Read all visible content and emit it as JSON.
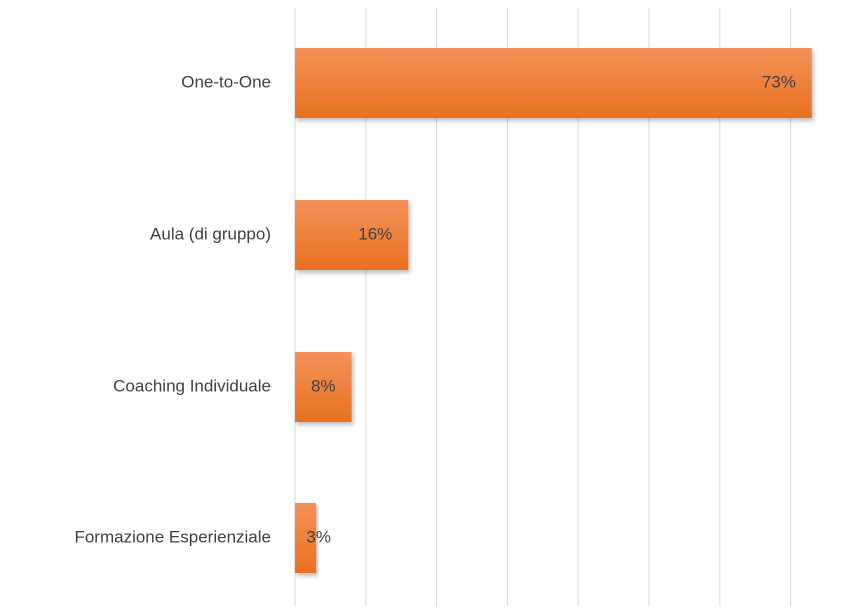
{
  "chart_data": {
    "type": "bar",
    "orientation": "horizontal",
    "title": "",
    "xlabel": "",
    "ylabel": "",
    "categories": [
      "One-to-One",
      "Aula (di gruppo)",
      "Coaching Individuale",
      "Formazione Esperienziale"
    ],
    "values": [
      73,
      16,
      8,
      3
    ],
    "data_labels": [
      "73%",
      "16%",
      "8%",
      "3%"
    ],
    "unit": "%",
    "xlim": [
      0,
      70
    ],
    "grid": true,
    "legend": "none",
    "colors": {
      "bar_fill_start": "#f4915a",
      "bar_fill_end": "#e8711f",
      "bar_stroke": "#ed7d31",
      "grid": "#d9d9d9",
      "text": "#404040"
    }
  }
}
